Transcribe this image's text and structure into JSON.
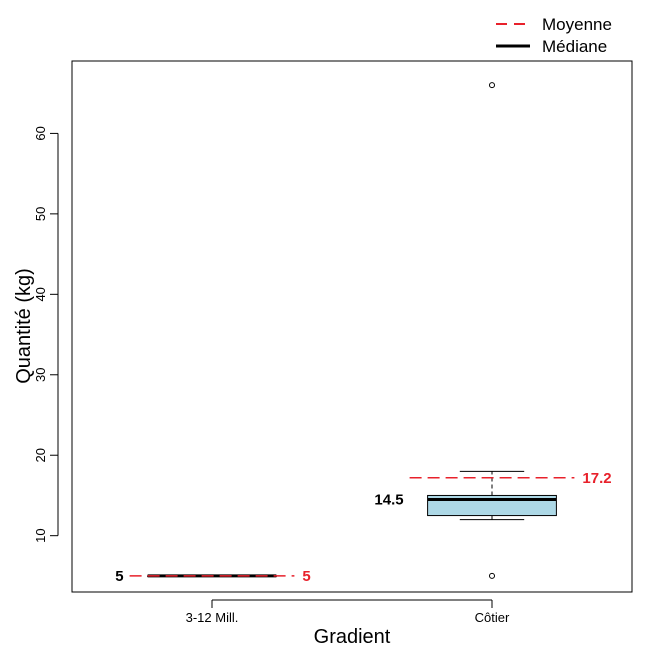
{
  "chart_data": {
    "type": "boxplot",
    "xlabel": "Gradient",
    "ylabel": "Quantité (kg)",
    "categories": [
      "3-12 Mill.",
      "Côtier"
    ],
    "ylim": [
      3,
      69
    ],
    "yticks": [
      10,
      20,
      30,
      40,
      50,
      60
    ],
    "grid": false,
    "legend": {
      "placement": "top-right",
      "entries": [
        {
          "label": "Moyenne",
          "style": "dashed",
          "color": "#e8212b"
        },
        {
          "label": "Médiane",
          "style": "solid",
          "color": "#000000"
        }
      ]
    },
    "colors": {
      "box_fill": "#add8e6",
      "mean": "#e8212b",
      "median": "#000000"
    },
    "boxes": [
      {
        "category": "3-12 Mill.",
        "whisker_low": 5,
        "q1": 5,
        "median": 5,
        "q3": 5,
        "whisker_high": 5,
        "mean": 5,
        "outliers": [],
        "median_label": "5",
        "mean_label": "5"
      },
      {
        "category": "Côtier",
        "whisker_low": 12,
        "q1": 12.5,
        "median": 14.5,
        "q3": 15,
        "whisker_high": 18,
        "mean": 17.2,
        "outliers": [
          66,
          5
        ],
        "median_label": "14.5",
        "mean_label": "17.2"
      }
    ]
  }
}
